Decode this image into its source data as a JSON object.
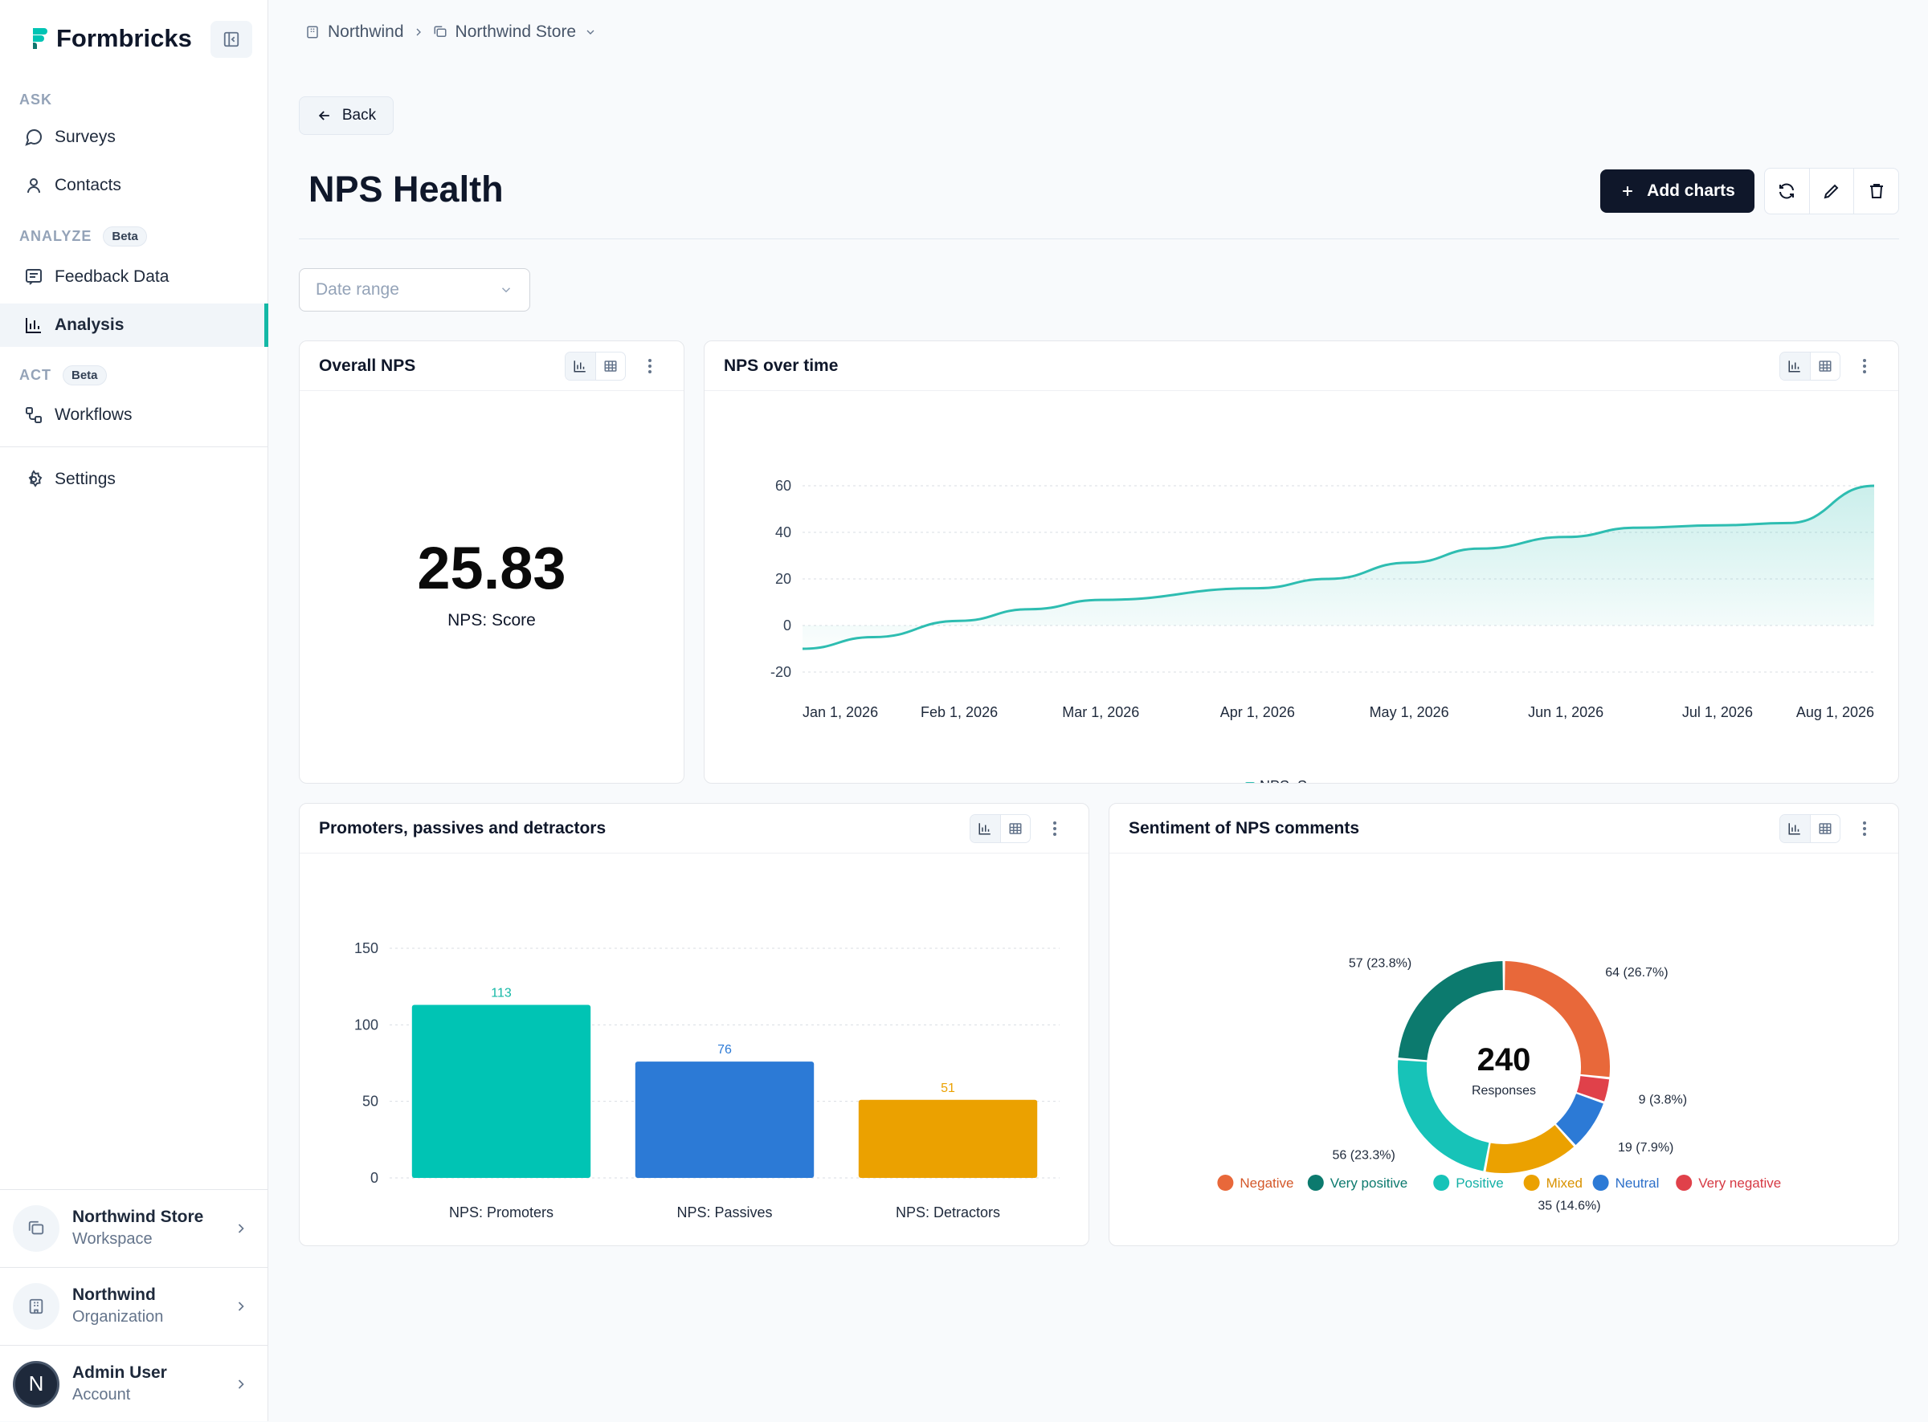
{
  "sidebar": {
    "brand": "Formbricks",
    "sections": {
      "ask": "ASK",
      "analyze": "ANALYZE",
      "act": "ACT",
      "beta": "Beta"
    },
    "items": {
      "surveys": "Surveys",
      "contacts": "Contacts",
      "feedback": "Feedback Data",
      "analysis": "Analysis",
      "workflows": "Workflows",
      "settings": "Settings"
    },
    "footer": {
      "workspace_name": "Northwind Store",
      "workspace_sub": "Workspace",
      "org_name": "Northwind",
      "org_sub": "Organization",
      "user_name": "Admin User",
      "user_sub": "Account",
      "avatar_letter": "N"
    }
  },
  "breadcrumb": {
    "org": "Northwind",
    "workspace": "Northwind Store"
  },
  "header": {
    "back": "Back",
    "title": "NPS Health",
    "add_charts": "Add charts"
  },
  "filters": {
    "date_placeholder": "Date range"
  },
  "cards": {
    "overall": {
      "title": "Overall NPS",
      "value": "25.83",
      "caption": "NPS: Score"
    },
    "over_time": {
      "title": "NPS over time"
    },
    "ppd": {
      "title": "Promoters, passives and detractors"
    },
    "sentiment": {
      "title": "Sentiment of NPS comments",
      "center_value": "240",
      "center_label": "Responses"
    }
  },
  "chart_data": [
    {
      "type": "area",
      "x": [
        "Jan 1, 2026",
        "Feb 1, 2026",
        "Mar 1, 2026",
        "Apr 1, 2026",
        "May 1, 2026",
        "Jun 1, 2026",
        "Jul 1, 2026",
        "Aug 1, 2026"
      ],
      "yticks": [
        60,
        40,
        20,
        0,
        -20
      ],
      "ylim": [
        -20,
        60
      ],
      "grid": true,
      "legend": "bottom-center",
      "series": [
        {
          "name": "NPS: Score",
          "color": "#2ebdb1",
          "points": [
            {
              "date": "2026-01-01",
              "value": -10
            },
            {
              "date": "2026-01-15",
              "value": -5
            },
            {
              "date": "2026-02-01",
              "value": 2
            },
            {
              "date": "2026-02-15",
              "value": 7
            },
            {
              "date": "2026-03-01",
              "value": 11
            },
            {
              "date": "2026-04-01",
              "value": 16
            },
            {
              "date": "2026-04-15",
              "value": 20
            },
            {
              "date": "2026-05-01",
              "value": 27
            },
            {
              "date": "2026-05-15",
              "value": 33
            },
            {
              "date": "2026-06-01",
              "value": 38
            },
            {
              "date": "2026-06-15",
              "value": 42
            },
            {
              "date": "2026-07-01",
              "value": 43
            },
            {
              "date": "2026-07-15",
              "value": 44
            },
            {
              "date": "2026-08-01",
              "value": 60
            }
          ]
        }
      ]
    },
    {
      "type": "bar",
      "categories": [
        "NPS: Promoters",
        "NPS: Passives",
        "NPS: Detractors"
      ],
      "values": [
        113,
        76,
        51
      ],
      "colors": [
        "#00c4b4",
        "#2c7ad6",
        "#eba100"
      ],
      "label_colors": [
        "#14b8a6",
        "#2c7ad6",
        "#eba100"
      ],
      "yticks": [
        150,
        100,
        50,
        0
      ],
      "ylim": [
        0,
        150
      ],
      "grid": true
    },
    {
      "type": "pie",
      "total": 240,
      "slices": [
        {
          "name": "Negative",
          "value": 64,
          "label": "64 (26.7%)",
          "color": "#e8683a",
          "text_color": "#d4582a"
        },
        {
          "name": "Very negative",
          "value": 9,
          "label": "9 (3.8%)",
          "color": "#e0414a",
          "text_color": "#d63a44"
        },
        {
          "name": "Neutral",
          "value": 19,
          "label": "19 (7.9%)",
          "color": "#2c7ad6",
          "text_color": "#2c6fc9"
        },
        {
          "name": "Mixed",
          "value": 35,
          "label": "35 (14.6%)",
          "color": "#eba100",
          "text_color": "#d99200"
        },
        {
          "name": "Positive",
          "value": 56,
          "label": "56 (23.3%)",
          "color": "#17c3b8",
          "text_color": "#14b0a6"
        },
        {
          "name": "Very positive",
          "value": 57,
          "label": "57 (23.8%)",
          "color": "#0c7a6e",
          "text_color": "#0c7a6e"
        }
      ],
      "legend_order": [
        "Negative",
        "Very positive",
        "Positive",
        "Mixed",
        "Neutral",
        "Very negative"
      ],
      "legend": "bottom-center"
    }
  ]
}
